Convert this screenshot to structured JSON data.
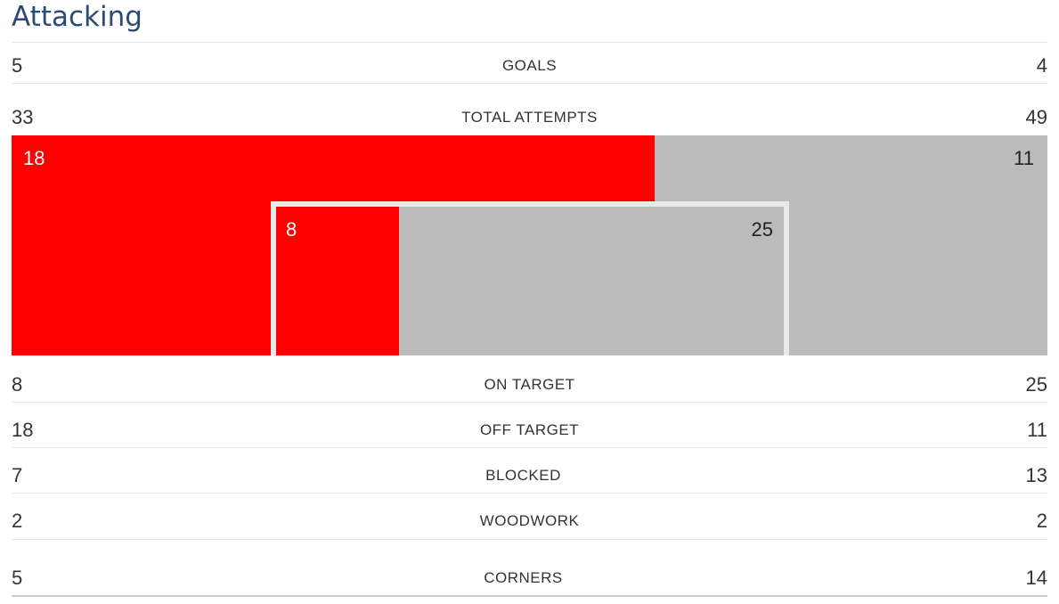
{
  "section": {
    "title": "Attacking"
  },
  "colors": {
    "home": "#ff0000",
    "away": "#bbbbbb",
    "frame": "#e9e9e9",
    "title": "#2c4a73"
  },
  "stats": {
    "goals": {
      "label": "GOALS",
      "home": "5",
      "away": "4"
    },
    "total_attempts": {
      "label": "TOTAL ATTEMPTS",
      "home": "33",
      "away": "49"
    },
    "on_target": {
      "label": "ON TARGET",
      "home": "8",
      "away": "25"
    },
    "off_target": {
      "label": "OFF TARGET",
      "home": "18",
      "away": "11"
    },
    "blocked": {
      "label": "BLOCKED",
      "home": "7",
      "away": "13"
    },
    "woodwork": {
      "label": "WOODWORK",
      "home": "2",
      "away": "2"
    },
    "corners": {
      "label": "CORNERS",
      "home": "5",
      "away": "14"
    }
  },
  "shot_map": {
    "off_target": {
      "home": 18,
      "away": 11
    },
    "on_target": {
      "home": 8,
      "away": 25
    }
  }
}
